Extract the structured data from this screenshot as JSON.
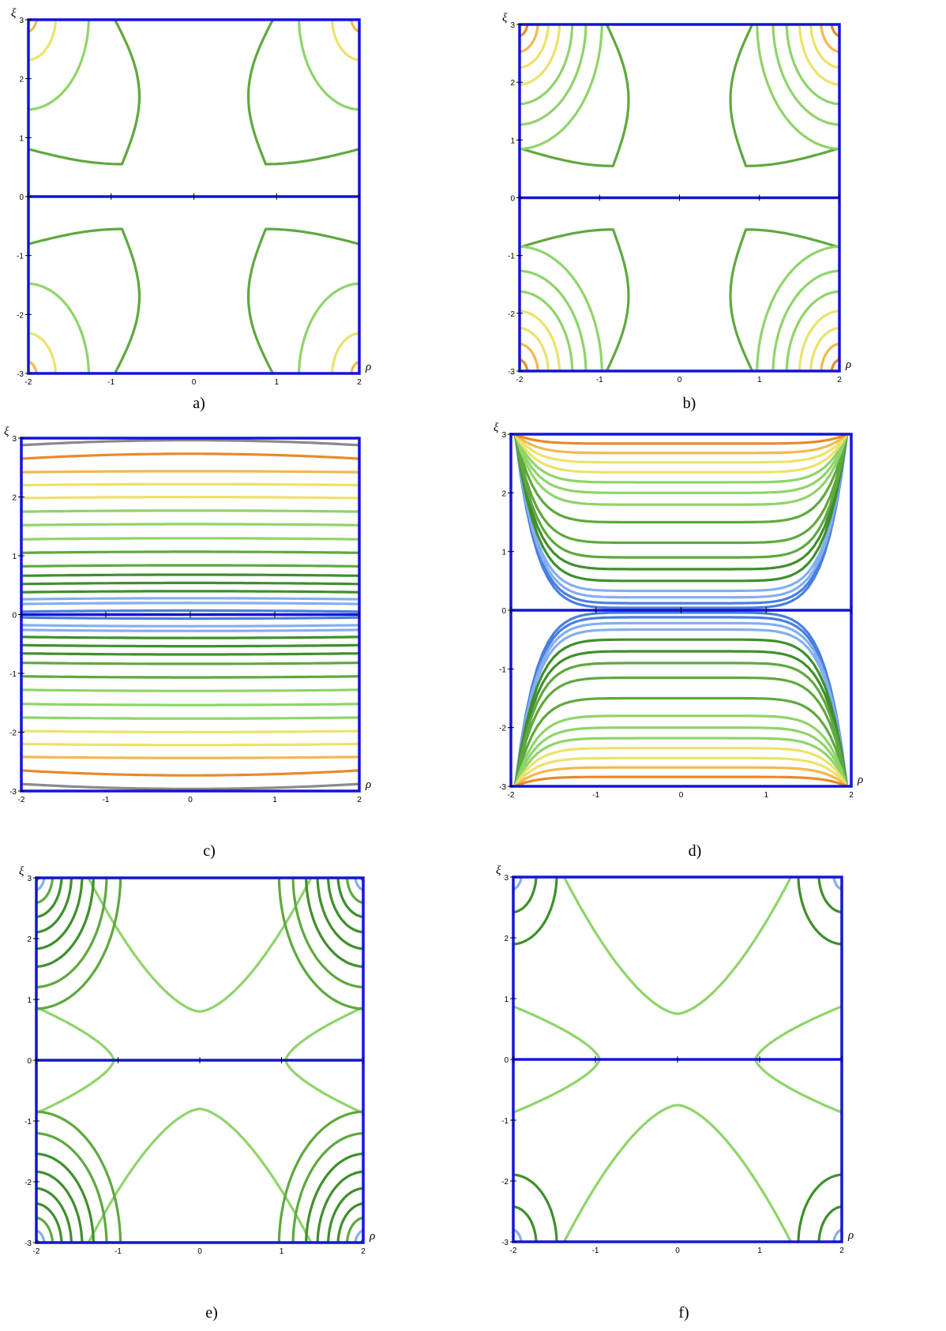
{
  "colors": {
    "frame": "#1414d8",
    "levels": [
      "#4a7fe0",
      "#84aef0",
      "#3f8f2c",
      "#5fa83e",
      "#8fd46a",
      "#ece26a",
      "#f2b84e",
      "#e88a2a",
      "#8a8a8a"
    ]
  },
  "chart_data": [
    {
      "type": "contour",
      "caption": "a)",
      "xlabel": "ρ",
      "ylabel": "ξ",
      "xlim": [
        -2,
        2
      ],
      "ylim": [
        -3,
        3
      ],
      "xticks": [
        "-2",
        "-1",
        "0",
        "1",
        "2"
      ],
      "yticks": [
        "-3",
        "-2",
        "-1",
        "0",
        "1",
        "2",
        "3"
      ],
      "pattern": "saddle",
      "levels": [
        {
          "color": 1,
          "mode": "arc",
          "y0": 2.9
        },
        {
          "color": 2,
          "mode": "arc",
          "y0": 2.45
        },
        {
          "color": 3,
          "mode": "saddle",
          "r0": 1.3
        },
        {
          "color": 4,
          "mode": "corner",
          "r0": 0.75
        },
        {
          "color": 5,
          "mode": "corner",
          "r0": 0.35
        },
        {
          "color": 6,
          "mode": "corner",
          "r0": 0.12
        }
      ]
    },
    {
      "type": "contour",
      "caption": "b)",
      "xlabel": "ρ",
      "ylabel": "ξ",
      "xlim": [
        -2,
        2
      ],
      "ylim": [
        -3,
        3
      ],
      "xticks": [
        "-2",
        "-1",
        "0",
        "1",
        "2"
      ],
      "yticks": [
        "-3",
        "-2",
        "-1",
        "0",
        "1",
        "2",
        "3"
      ],
      "pattern": "saddle",
      "levels": [
        {
          "color": 0,
          "mode": "arc",
          "y0": 2.95
        },
        {
          "color": 1,
          "mode": "arc",
          "y0": 2.85
        },
        {
          "color": 2,
          "mode": "arc",
          "y0": 2.72
        },
        {
          "color": 2,
          "mode": "arc",
          "y0": 2.58
        },
        {
          "color": 3,
          "mode": "arc",
          "y0": 2.42
        },
        {
          "color": 3,
          "mode": "arc",
          "y0": 2.25
        },
        {
          "color": 3,
          "mode": "arc",
          "y0": 2.05
        },
        {
          "color": 3,
          "mode": "arc",
          "y0": 1.8
        },
        {
          "color": 3,
          "mode": "saddle",
          "r0": 1.2
        },
        {
          "color": 4,
          "mode": "corner",
          "r0": 1.05
        },
        {
          "color": 4,
          "mode": "corner",
          "r0": 0.85
        },
        {
          "color": 4,
          "mode": "corner",
          "r0": 0.68
        },
        {
          "color": 5,
          "mode": "corner",
          "r0": 0.52
        },
        {
          "color": 5,
          "mode": "corner",
          "r0": 0.38
        },
        {
          "color": 6,
          "mode": "corner",
          "r0": 0.25
        },
        {
          "color": 7,
          "mode": "corner",
          "r0": 0.12
        }
      ]
    },
    {
      "type": "contour",
      "caption": "c)",
      "xlabel": "ρ",
      "ylabel": "ξ",
      "xlim": [
        -2,
        2
      ],
      "ylim": [
        -3,
        3
      ],
      "xticks": [
        "-2",
        "-1",
        "0",
        "1",
        "2"
      ],
      "yticks": [
        "-3",
        "-2",
        "-1",
        "0",
        "1",
        "2",
        "3"
      ],
      "pattern": "bands",
      "levels": [
        {
          "color": 0,
          "y": 0.05
        },
        {
          "color": 1,
          "y": 0.18
        },
        {
          "color": 1,
          "y": 0.26
        },
        {
          "color": 2,
          "y": 0.38
        },
        {
          "color": 2,
          "y": 0.52
        },
        {
          "color": 2,
          "y": 0.66
        },
        {
          "color": 3,
          "y": 0.82
        },
        {
          "color": 3,
          "y": 1.05
        },
        {
          "color": 4,
          "y": 1.28
        },
        {
          "color": 4,
          "y": 1.52
        },
        {
          "color": 4,
          "y": 1.75
        },
        {
          "color": 5,
          "y": 1.98
        },
        {
          "color": 5,
          "y": 2.2
        },
        {
          "color": 6,
          "y": 2.42
        },
        {
          "color": 7,
          "y": 2.65
        },
        {
          "color": 8,
          "y": 2.88
        }
      ]
    },
    {
      "type": "contour",
      "caption": "d)",
      "xlabel": "ρ",
      "ylabel": "ξ",
      "xlim": [
        -2,
        2
      ],
      "ylim": [
        -3,
        3
      ],
      "xticks": [
        "-2",
        "-1",
        "0",
        "1",
        "2"
      ],
      "yticks": [
        "-3",
        "-2",
        "-1",
        "0",
        "1",
        "2",
        "3"
      ],
      "pattern": "cups",
      "levels": [
        {
          "color": 0,
          "y": 0.04
        },
        {
          "color": 0,
          "y": 0.12
        },
        {
          "color": 1,
          "y": 0.22
        },
        {
          "color": 1,
          "y": 0.33
        },
        {
          "color": 2,
          "y": 0.5
        },
        {
          "color": 2,
          "y": 0.7
        },
        {
          "color": 3,
          "y": 0.9
        },
        {
          "color": 3,
          "y": 1.15
        },
        {
          "color": 3,
          "y": 1.5
        },
        {
          "color": 4,
          "y": 1.8
        },
        {
          "color": 4,
          "y": 2.0
        },
        {
          "color": 4,
          "y": 2.18
        },
        {
          "color": 5,
          "y": 2.35
        },
        {
          "color": 5,
          "y": 2.52
        },
        {
          "color": 6,
          "y": 2.68
        },
        {
          "color": 7,
          "y": 2.84
        }
      ]
    },
    {
      "type": "contour",
      "caption": "e)",
      "xlabel": "ρ",
      "ylabel": "ξ",
      "xlim": [
        -2,
        2
      ],
      "ylim": [
        -3,
        3
      ],
      "xticks": [
        "-2",
        "-1",
        "0",
        "1",
        "2"
      ],
      "yticks": [
        "-3",
        "-2",
        "-1",
        "0",
        "1",
        "2",
        "3"
      ],
      "pattern": "bell",
      "levels": [
        {
          "color": 7,
          "mode": "arc",
          "y0": 2.9
        },
        {
          "color": 6,
          "mode": "arc",
          "y0": 2.75
        },
        {
          "color": 6,
          "mode": "arc",
          "y0": 2.6
        },
        {
          "color": 5,
          "mode": "arc",
          "y0": 2.45
        },
        {
          "color": 5,
          "mode": "arc",
          "y0": 2.3
        },
        {
          "color": 4,
          "mode": "arc",
          "y0": 2.15
        },
        {
          "color": 4,
          "mode": "arc",
          "y0": 1.95
        },
        {
          "color": 4,
          "mode": "bell",
          "r0": 0.8
        },
        {
          "color": 4,
          "mode": "side",
          "r0": 1.0
        },
        {
          "color": 3,
          "mode": "corner",
          "r0": 1.05
        },
        {
          "color": 3,
          "mode": "corner",
          "r0": 0.88
        },
        {
          "color": 2,
          "mode": "corner",
          "r0": 0.72
        },
        {
          "color": 2,
          "mode": "corner",
          "r0": 0.58
        },
        {
          "color": 2,
          "mode": "corner",
          "r0": 0.45
        },
        {
          "color": 2,
          "mode": "corner",
          "r0": 0.33
        },
        {
          "color": 3,
          "mode": "corner",
          "r0": 0.22
        },
        {
          "color": 1,
          "mode": "corner",
          "r0": 0.12
        },
        {
          "color": 0,
          "mode": "corner",
          "r0": 0.05
        }
      ]
    },
    {
      "type": "contour",
      "caption": "f)",
      "xlabel": "ρ",
      "ylabel": "ξ",
      "xlim": [
        -2,
        2
      ],
      "ylim": [
        -3,
        3
      ],
      "xticks": [
        "-2",
        "-1",
        "0",
        "1",
        "2"
      ],
      "yticks": [
        "-3",
        "-2",
        "-1",
        "0",
        "1",
        "2",
        "3"
      ],
      "pattern": "bell",
      "levels": [
        {
          "color": 7,
          "mode": "arc",
          "y0": 2.9
        },
        {
          "color": 5,
          "mode": "arc",
          "y0": 2.45
        },
        {
          "color": 4,
          "mode": "bell",
          "r0": 0.75
        },
        {
          "color": 4,
          "mode": "side",
          "r0": 1.1
        },
        {
          "color": 2,
          "mode": "corner",
          "r0": 0.55
        },
        {
          "color": 2,
          "mode": "corner",
          "r0": 0.3
        },
        {
          "color": 1,
          "mode": "corner",
          "r0": 0.12
        }
      ]
    }
  ]
}
